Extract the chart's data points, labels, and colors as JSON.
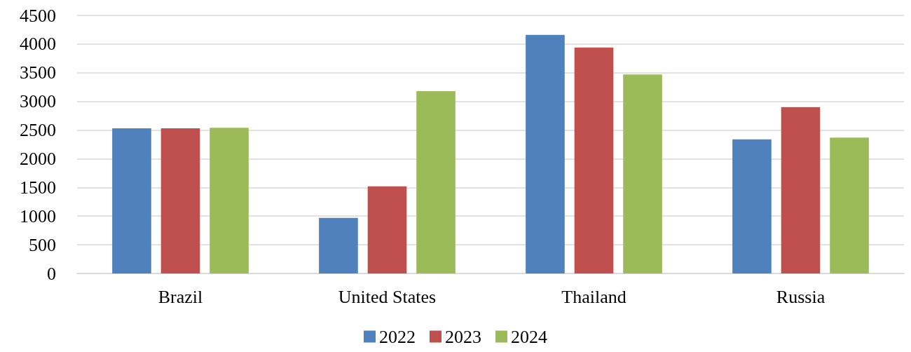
{
  "chart_data": {
    "type": "bar",
    "categories": [
      "Brazil",
      "United States",
      "Thailand",
      "Russia"
    ],
    "series": [
      {
        "name": "2022",
        "color": "#4f81bd",
        "values": [
          2530,
          970,
          4160,
          2340
        ]
      },
      {
        "name": "2023",
        "color": "#c0504d",
        "values": [
          2530,
          1520,
          3940,
          2900
        ]
      },
      {
        "name": "2024",
        "color": "#9bbb59",
        "values": [
          2540,
          3180,
          3470,
          2370
        ]
      }
    ],
    "ylim": [
      0,
      4500
    ],
    "yticks": [
      0,
      500,
      1000,
      1500,
      2000,
      2500,
      3000,
      3500,
      4000,
      4500
    ],
    "grid": "y",
    "legend": "bottom"
  }
}
